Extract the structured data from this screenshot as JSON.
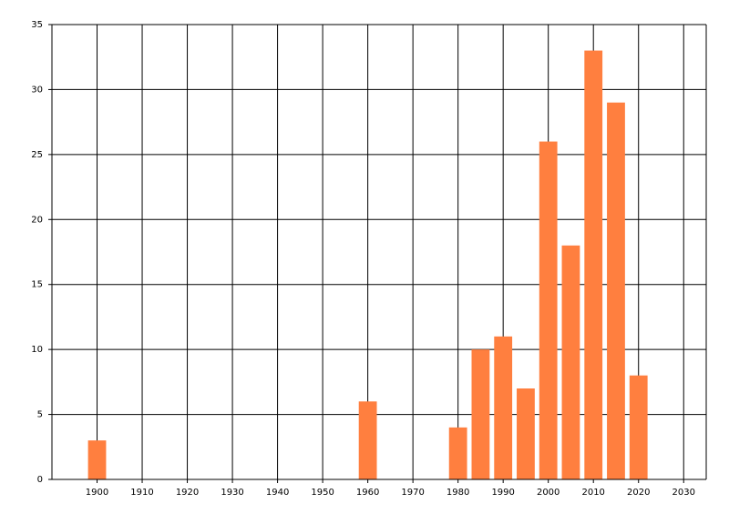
{
  "chart_data": {
    "type": "bar",
    "x": [
      1900,
      1960,
      1980,
      1985,
      1990,
      1995,
      2000,
      2005,
      2010,
      2015,
      2020
    ],
    "values": [
      3,
      6,
      4,
      10,
      11,
      7,
      26,
      18,
      33,
      29,
      8
    ],
    "color": "#ff7f3f",
    "xlim": [
      1890,
      2035
    ],
    "xticks": [
      1900,
      1910,
      1920,
      1930,
      1940,
      1950,
      1960,
      1970,
      1980,
      1990,
      2000,
      2010,
      2020,
      2030
    ],
    "ylim": [
      0,
      35
    ],
    "yticks": [
      0,
      5,
      10,
      15,
      20,
      25,
      30,
      35
    ],
    "grid": true
  }
}
